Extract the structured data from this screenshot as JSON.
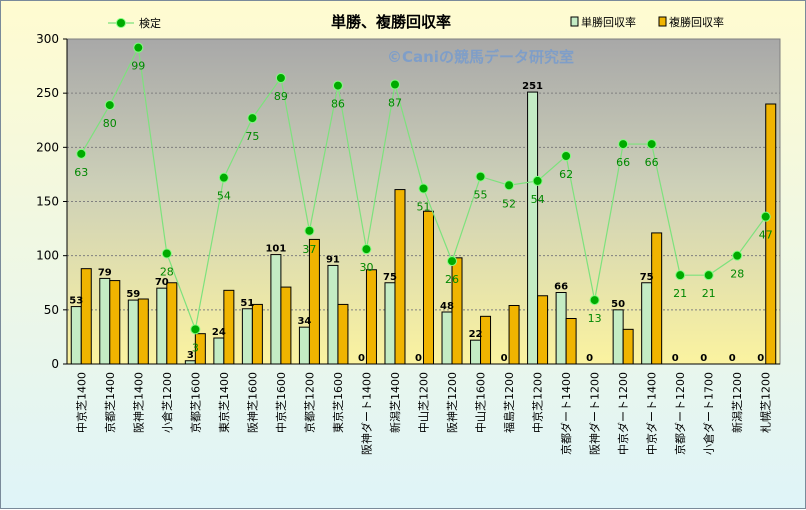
{
  "chart_data": {
    "type": "bar",
    "title": "単勝、複勝回収率",
    "watermark": "©Caniの競馬データ研究室",
    "ylim": [
      0,
      300
    ],
    "yticks": [
      0,
      50,
      100,
      150,
      200,
      250,
      300
    ],
    "grid": true,
    "legend_position": "top",
    "colors": {
      "tansho": "#c4ecc4",
      "fukusho": "#f0b400",
      "kentei": "#7de27d",
      "kentei_marker": "#00aa00"
    },
    "categories": [
      "中京芝1400",
      "京都芝1400",
      "阪神芝1400",
      "小倉芝1200",
      "京都芝1600",
      "東京芝1400",
      "阪神芝1600",
      "中京芝1600",
      "京都芝1200",
      "東京芝1600",
      "阪神ダート1400",
      "新潟芝1400",
      "中山芝1200",
      "阪神芝1200",
      "中山芝1600",
      "福島芝1200",
      "中京芝1200",
      "京都ダート1400",
      "阪神ダート1200",
      "中京ダート1200",
      "中京ダート1400",
      "京都ダート1200",
      "小倉ダート1700",
      "新潟芝1200",
      "札幌芝1200"
    ],
    "series": [
      {
        "name": "単勝回収率",
        "values": [
          53,
          79,
          59,
          70,
          3,
          24,
          51,
          101,
          34,
          91,
          0,
          75,
          0,
          48,
          22,
          0,
          251,
          66,
          0,
          50,
          75,
          0,
          0,
          0,
          0
        ]
      },
      {
        "name": "複勝回収率",
        "values": [
          88,
          77,
          60,
          75,
          28,
          68,
          55,
          71,
          115,
          55,
          87,
          161,
          141,
          98,
          44,
          54,
          63,
          42,
          0,
          32,
          121,
          0,
          0,
          0,
          240
        ]
      },
      {
        "name": "検定",
        "values": [
          194,
          239,
          292,
          102,
          32,
          172,
          227,
          264,
          123,
          257,
          106,
          258,
          162,
          95,
          173,
          165,
          169,
          192,
          59,
          203,
          203,
          82,
          82,
          100,
          136
        ],
        "labels": [
          63,
          80,
          99,
          28,
          3,
          54,
          75,
          89,
          37,
          86,
          30,
          87,
          51,
          26,
          55,
          52,
          54,
          62,
          13,
          66,
          66,
          21,
          21,
          28,
          47
        ]
      }
    ]
  }
}
